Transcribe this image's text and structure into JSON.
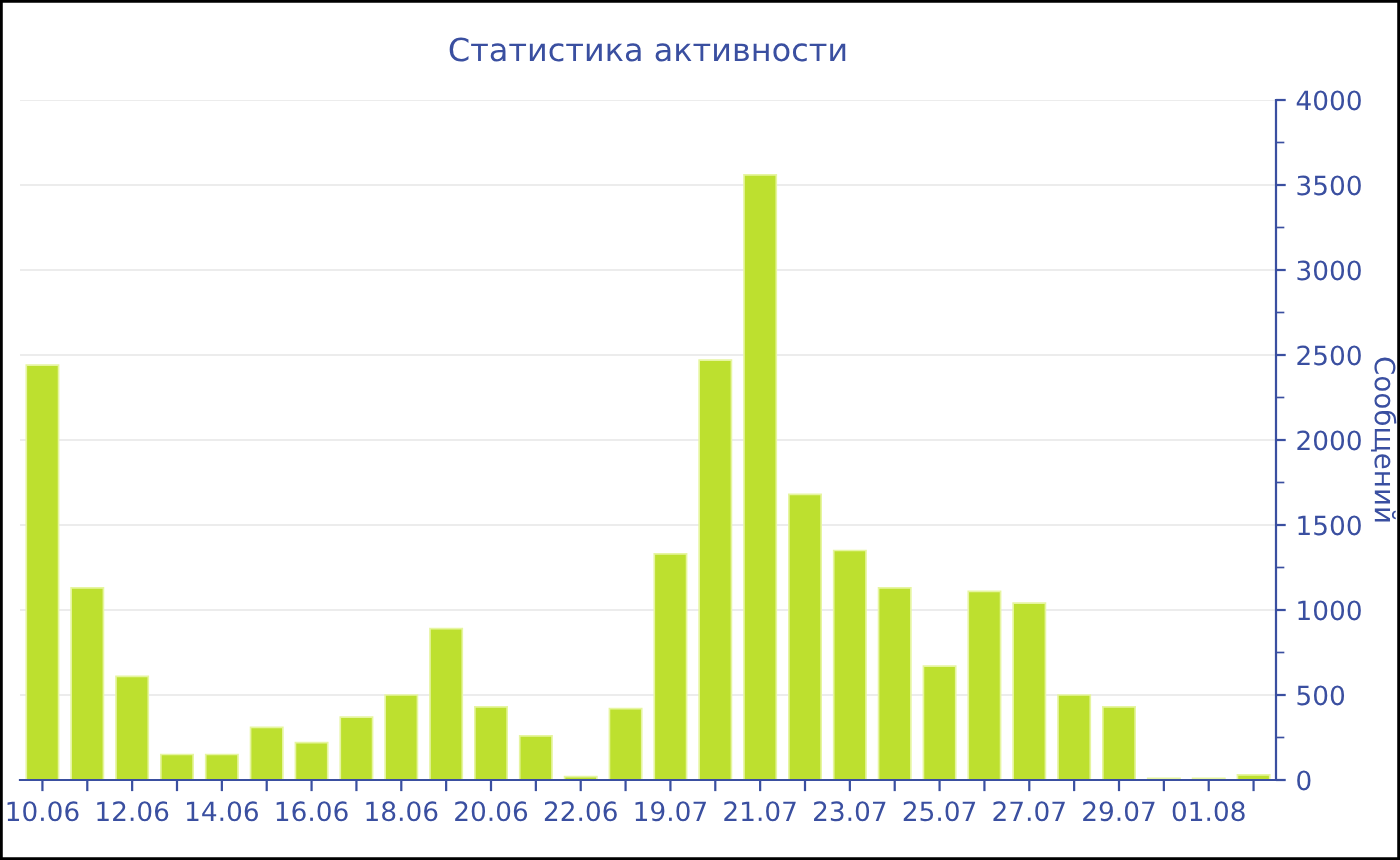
{
  "chart_data": {
    "type": "bar",
    "title": "Статистика активности",
    "ylabel": "Сообщений",
    "categories": [
      "10.06",
      null,
      "12.06",
      null,
      "14.06",
      null,
      "16.06",
      null,
      "18.06",
      null,
      "20.06",
      null,
      "22.06",
      null,
      "19.07",
      null,
      "21.07",
      null,
      "23.07",
      null,
      "25.07",
      null,
      "27.07",
      null,
      "29.07",
      null,
      "01.08",
      null
    ],
    "values": [
      2440,
      1130,
      610,
      150,
      150,
      310,
      220,
      370,
      500,
      890,
      430,
      260,
      20,
      420,
      1330,
      2470,
      3560,
      1680,
      1350,
      1130,
      670,
      1110,
      1040,
      500,
      430,
      10,
      10,
      30
    ],
    "color": "#bde02f",
    "ylim": [
      0,
      4000
    ],
    "yticks": [
      0,
      500,
      1000,
      1500,
      2000,
      2500,
      3000,
      3500,
      4000
    ],
    "grid": "y",
    "legend": false
  }
}
